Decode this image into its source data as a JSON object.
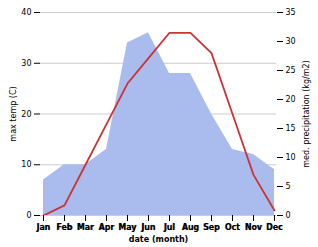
{
  "chart_data": {
    "type": "line",
    "categories": [
      "Jan",
      "Feb",
      "Mar",
      "Apr",
      "May",
      "Jun",
      "Jul",
      "Aug",
      "Sep",
      "Oct",
      "Nov",
      "Dec"
    ],
    "series": [
      {
        "type": "area",
        "color": "#aabbee",
        "values": [
          7,
          10,
          10,
          13,
          34,
          36,
          28,
          28,
          20,
          13,
          12,
          9
        ]
      },
      {
        "type": "line",
        "color": "#cc3333",
        "values": [
          0,
          2,
          10,
          18,
          26,
          31,
          36,
          36,
          32,
          20,
          8,
          1
        ]
      }
    ],
    "ylim": [
      0,
      40
    ],
    "yticks": [
      0,
      10,
      20,
      30,
      40
    ],
    "y2lim": [
      0,
      35
    ],
    "y2ticks": [
      0,
      5,
      10,
      15,
      20,
      25,
      30,
      35
    ],
    "xlabel": "date (month)",
    "ylabel": "max temp (C)",
    "y2label": "med. precipitation (kg/m2)",
    "grid": true
  }
}
